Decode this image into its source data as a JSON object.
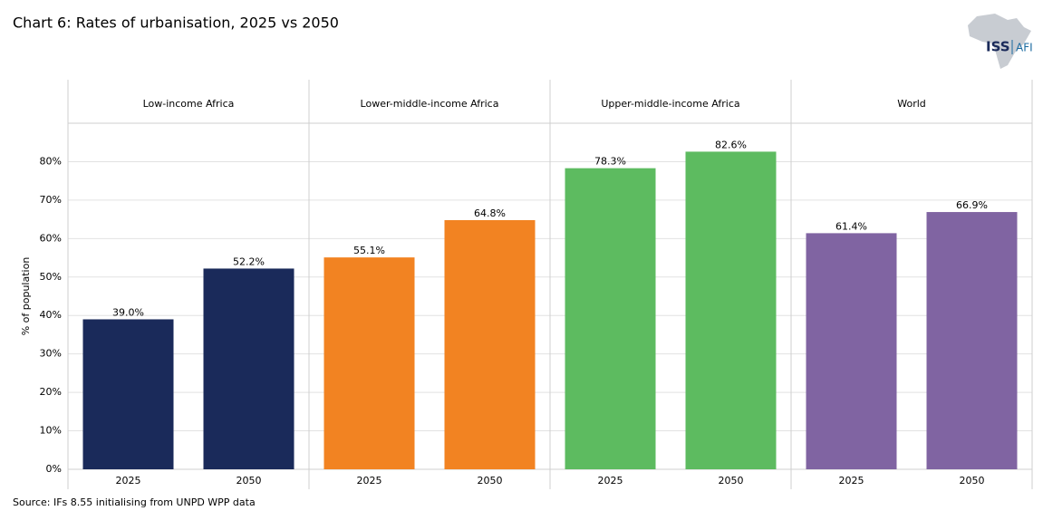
{
  "chart_data": {
    "type": "bar",
    "title": "Chart 6: Rates of urbanisation, 2025 vs 2050",
    "y_label": "% of population",
    "source": "Source: IFs 8.55 initialising from UNPD WPP data",
    "ylim": [
      0,
      90
    ],
    "yticks": [
      {
        "value": 0,
        "label": "0%"
      },
      {
        "value": 10,
        "label": "10%"
      },
      {
        "value": 20,
        "label": "20%"
      },
      {
        "value": 30,
        "label": "30%"
      },
      {
        "value": 40,
        "label": "40%"
      },
      {
        "value": 50,
        "label": "50%"
      },
      {
        "value": 60,
        "label": "60%"
      },
      {
        "value": 70,
        "label": "70%"
      },
      {
        "value": 80,
        "label": "80%"
      }
    ],
    "grid": true,
    "panels": [
      {
        "name": "Low-income Africa",
        "color": "#1a2a5a",
        "categories": [
          "2025",
          "2050"
        ],
        "values": [
          39.0,
          52.2
        ],
        "value_labels": [
          "39.0%",
          "52.2%"
        ]
      },
      {
        "name": "Lower-middle-income Africa",
        "color": "#f28322",
        "categories": [
          "2025",
          "2050"
        ],
        "values": [
          55.1,
          64.8
        ],
        "value_labels": [
          "55.1%",
          "64.8%"
        ]
      },
      {
        "name": "Upper-middle-income Africa",
        "color": "#5dbb60",
        "categories": [
          "2025",
          "2050"
        ],
        "values": [
          78.3,
          82.6
        ],
        "value_labels": [
          "78.3%",
          "82.6%"
        ]
      },
      {
        "name": "World",
        "color": "#8064a2",
        "categories": [
          "2025",
          "2050"
        ],
        "values": [
          61.4,
          66.9
        ],
        "value_labels": [
          "61.4%",
          "66.9%"
        ]
      }
    ]
  },
  "logo": {
    "main": "ISS",
    "sub": "AFI"
  }
}
